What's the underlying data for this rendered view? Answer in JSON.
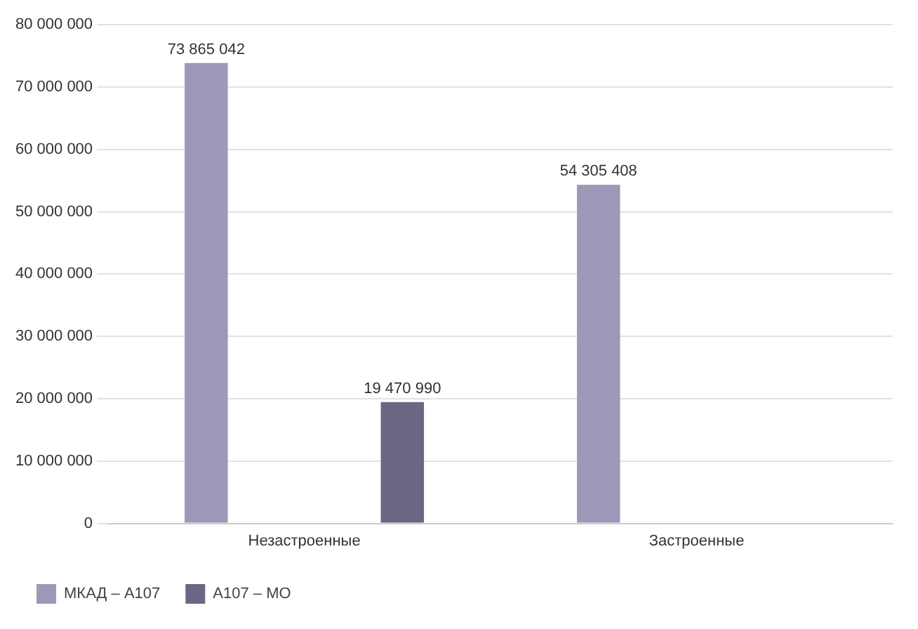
{
  "chart_data": {
    "type": "bar",
    "categories": [
      "Незастроенные",
      "Застроенные"
    ],
    "series": [
      {
        "name": "МКАД – А107",
        "color": "#9d98b8",
        "values": [
          73865042,
          54305408
        ],
        "value_labels": [
          "73 865 042",
          "54 305 408"
        ]
      },
      {
        "name": "А107 – МО",
        "color": "#6b6683",
        "values": [
          19470990,
          null
        ],
        "value_labels": [
          "19 470 990",
          null
        ]
      }
    ],
    "ylim": [
      0,
      80000000
    ],
    "yticks": [
      {
        "value": 0,
        "label": "0"
      },
      {
        "value": 10000000,
        "label": "10 000 000"
      },
      {
        "value": 20000000,
        "label": "20 000 000"
      },
      {
        "value": 30000000,
        "label": "30 000 000"
      },
      {
        "value": 40000000,
        "label": "40 000 000"
      },
      {
        "value": 50000000,
        "label": "50 000 000"
      },
      {
        "value": 60000000,
        "label": "60 000 000"
      },
      {
        "value": 70000000,
        "label": "70 000 000"
      },
      {
        "value": 80000000,
        "label": "80 000 000"
      }
    ],
    "grid": "y",
    "legend": "bottom left"
  }
}
